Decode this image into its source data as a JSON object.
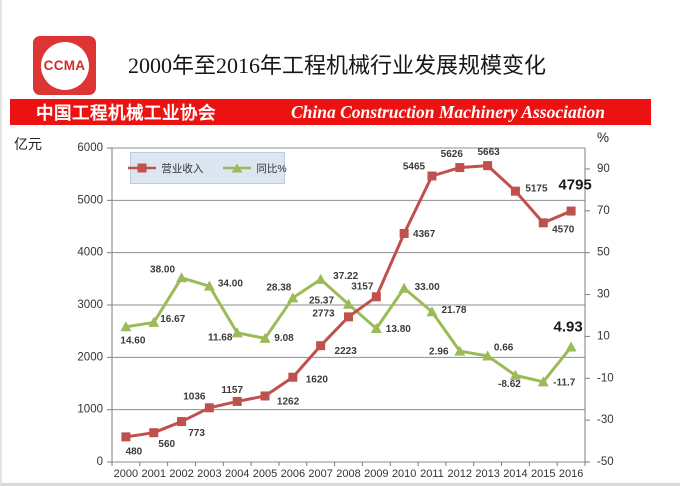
{
  "header": {
    "logo_text": "CCMA",
    "title": "2000年至2016年工程机械行业发展规模变化"
  },
  "banner": {
    "cn": "中国工程机械工业协会",
    "en": "China Construction Machinery Association"
  },
  "chart_data": {
    "type": "line",
    "title": "2000年至2016年工程机械行业发展规模变化",
    "categories": [
      "2000",
      "2001",
      "2002",
      "2003",
      "2004",
      "2005",
      "2006",
      "2007",
      "2008",
      "2009",
      "2010",
      "2011",
      "2012",
      "2013",
      "2014",
      "2015",
      "2016"
    ],
    "series": [
      {
        "key": "revenue",
        "name": "营业收入",
        "axis": "left",
        "color": "#C0504D",
        "marker": "square",
        "values": [
          480,
          560,
          773,
          1036,
          1157,
          1262,
          1620,
          2223,
          2773,
          3157,
          4367,
          5465,
          5626,
          5663,
          5175,
          4570,
          4795
        ],
        "labels": [
          "480",
          "560",
          "773",
          "1036",
          "1157",
          "1262",
          "1620",
          "2223",
          "2773",
          "3157",
          "4367",
          "5465",
          "5626",
          "5663",
          "5175",
          "4570",
          "4795"
        ]
      },
      {
        "key": "yoy",
        "name": "同比%",
        "axis": "right",
        "color": "#9BBB59",
        "marker": "triangle",
        "values": [
          14.6,
          16.67,
          38.0,
          34.0,
          11.68,
          9.08,
          28.38,
          37.22,
          25.37,
          13.8,
          33.0,
          21.78,
          2.96,
          0.66,
          -8.62,
          -11.7,
          4.93
        ],
        "labels": [
          "14.60",
          "16.67",
          "38.00",
          "34.00",
          "11.68",
          "9.08",
          "28.38",
          "37.22",
          "25.37",
          "13.80",
          "33.00",
          "21.78",
          "2.96",
          "0.66",
          "-8.62",
          "-11.7",
          "4.93"
        ]
      }
    ],
    "y_left": {
      "label": "亿元",
      "min": 0,
      "max": 6000,
      "ticks": [
        0,
        1000,
        2000,
        3000,
        4000,
        5000,
        6000
      ]
    },
    "y_right": {
      "label": "%",
      "min": -50,
      "max": 100,
      "ticks": [
        -50,
        -30,
        -10,
        10,
        30,
        50,
        70,
        90
      ]
    },
    "legend": {
      "position": "top-left-inside"
    },
    "grid": true
  }
}
